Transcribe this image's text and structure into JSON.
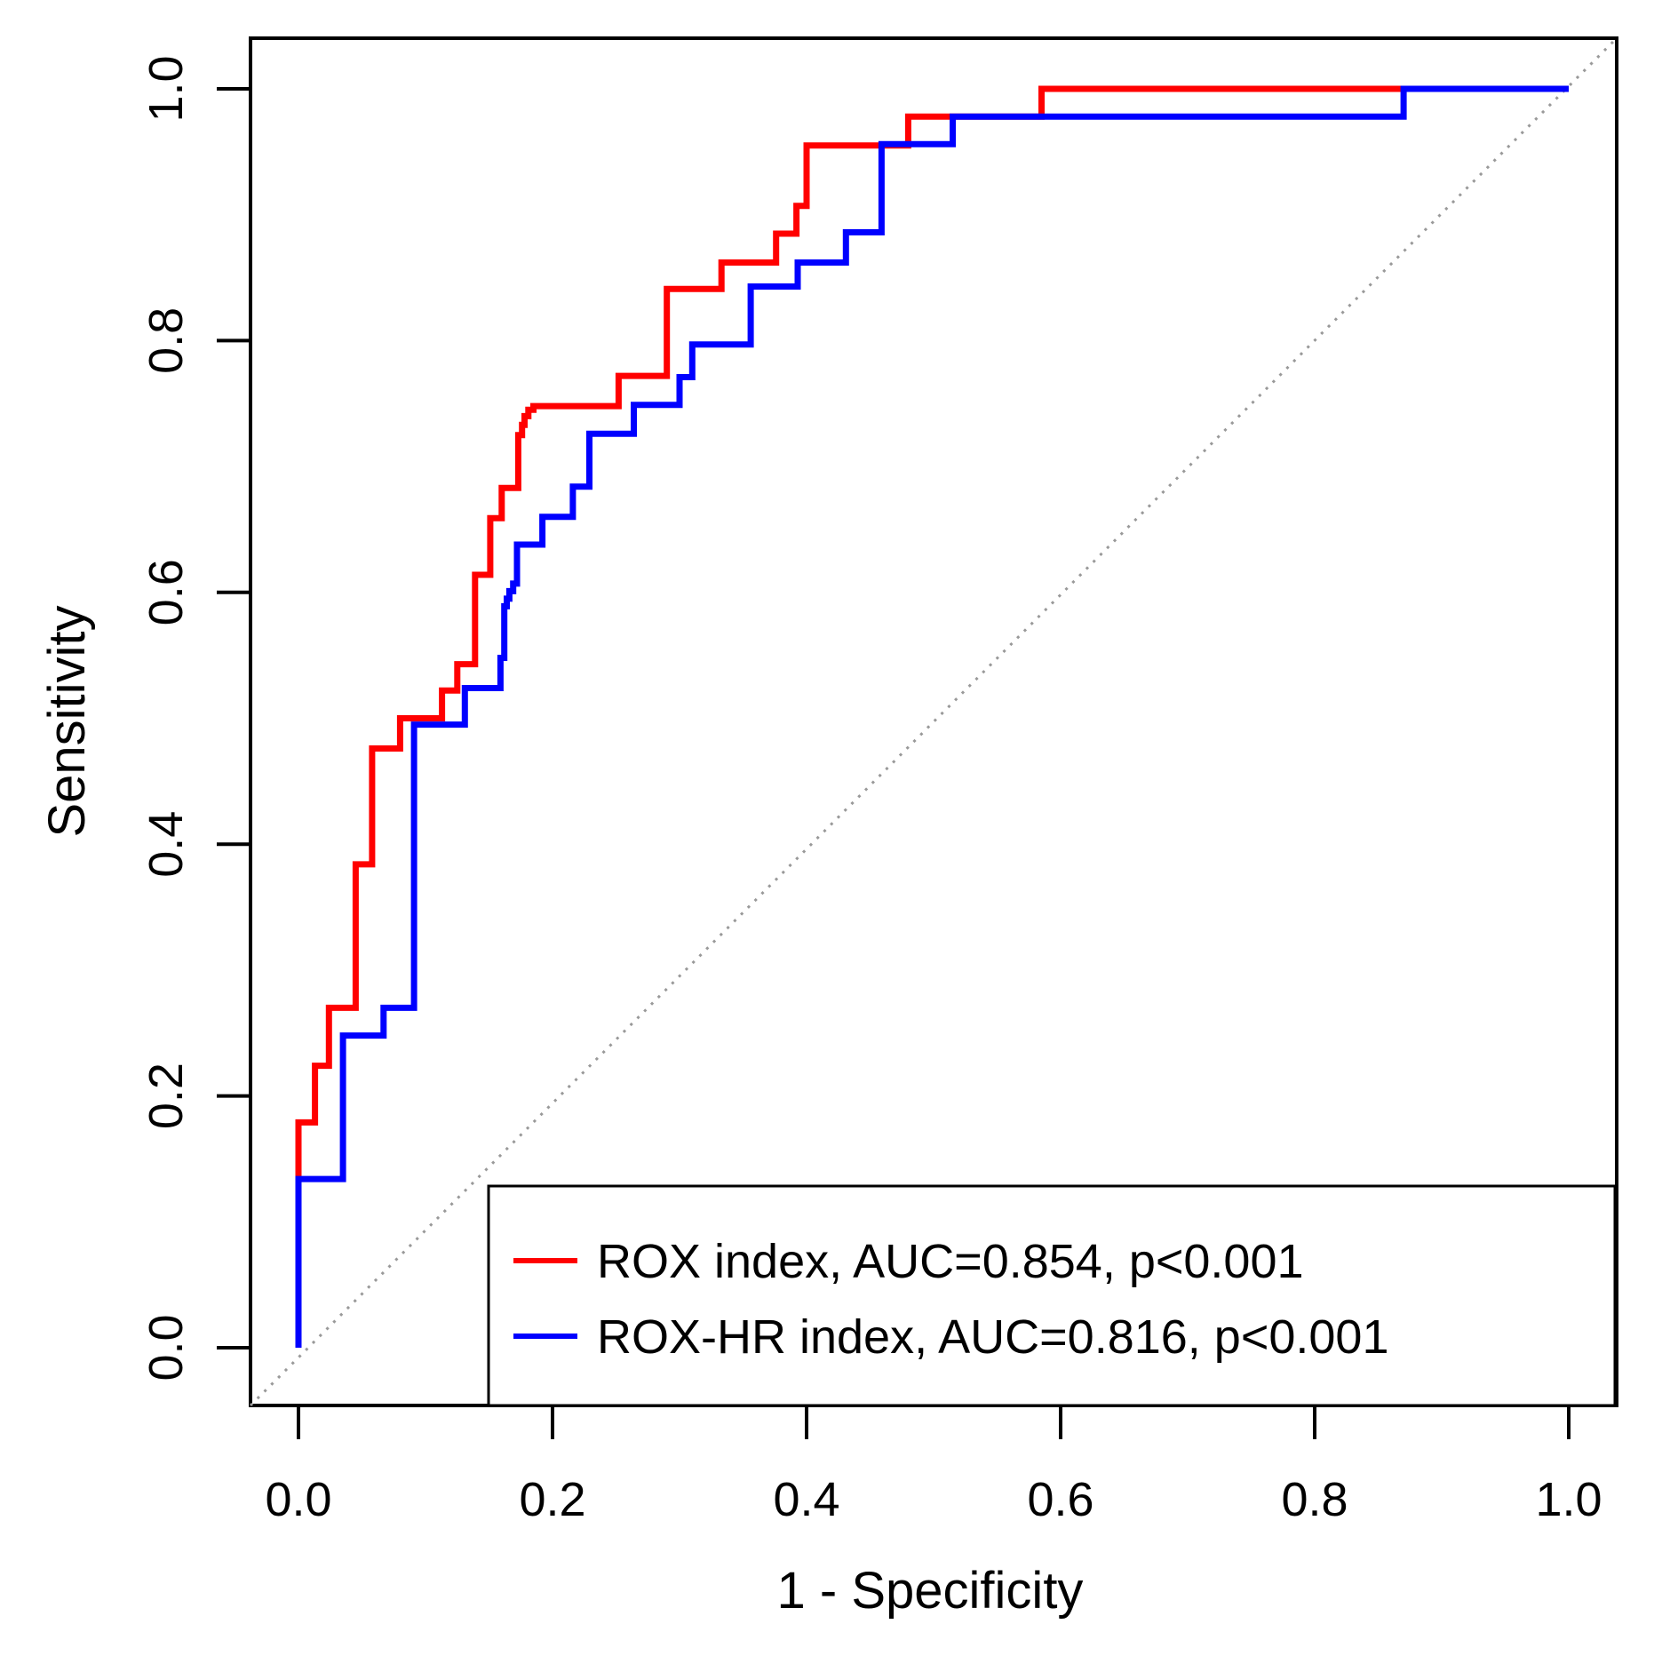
{
  "chart_data": {
    "type": "line",
    "subtype": "roc-step-curves",
    "title": "",
    "xlabel": "1 - Specificity",
    "ylabel": "Sensitivity",
    "xlim": [
      0,
      1
    ],
    "ylim": [
      0,
      1
    ],
    "grid": false,
    "diagonal_reference": true,
    "diagonal_color": "#999999",
    "axis_color": "#000000",
    "background": "#ffffff",
    "x_ticks": [
      {
        "value": 0.0,
        "label": "0.0"
      },
      {
        "value": 0.2,
        "label": "0.2"
      },
      {
        "value": 0.4,
        "label": "0.4"
      },
      {
        "value": 0.6,
        "label": "0.6"
      },
      {
        "value": 0.8,
        "label": "0.8"
      },
      {
        "value": 1.0,
        "label": "1.0"
      }
    ],
    "y_ticks": [
      {
        "value": 0.0,
        "label": "0.0"
      },
      {
        "value": 0.2,
        "label": "0.2"
      },
      {
        "value": 0.4,
        "label": "0.4"
      },
      {
        "value": 0.6,
        "label": "0.6"
      },
      {
        "value": 0.8,
        "label": "0.8"
      },
      {
        "value": 1.0,
        "label": "1.0"
      }
    ],
    "legend_position": "bottom-right",
    "series": [
      {
        "name": "ROX index, AUC=0.854, p<0.001",
        "color": "#ff0000",
        "auc": 0.854,
        "p_value": "p<0.001",
        "points": [
          [
            0.0,
            0.0
          ],
          [
            0.0,
            0.179
          ],
          [
            0.013,
            0.179
          ],
          [
            0.013,
            0.224
          ],
          [
            0.024,
            0.224
          ],
          [
            0.024,
            0.27
          ],
          [
            0.045,
            0.27
          ],
          [
            0.045,
            0.384
          ],
          [
            0.058,
            0.384
          ],
          [
            0.058,
            0.476
          ],
          [
            0.08,
            0.476
          ],
          [
            0.08,
            0.5
          ],
          [
            0.113,
            0.5
          ],
          [
            0.113,
            0.522
          ],
          [
            0.125,
            0.522
          ],
          [
            0.125,
            0.543
          ],
          [
            0.139,
            0.543
          ],
          [
            0.139,
            0.614
          ],
          [
            0.151,
            0.614
          ],
          [
            0.151,
            0.659
          ],
          [
            0.16,
            0.659
          ],
          [
            0.16,
            0.683
          ],
          [
            0.173,
            0.683
          ],
          [
            0.173,
            0.725
          ],
          [
            0.176,
            0.725
          ],
          [
            0.176,
            0.733
          ],
          [
            0.178,
            0.733
          ],
          [
            0.178,
            0.74
          ],
          [
            0.181,
            0.74
          ],
          [
            0.181,
            0.745
          ],
          [
            0.185,
            0.745
          ],
          [
            0.185,
            0.748
          ],
          [
            0.252,
            0.748
          ],
          [
            0.252,
            0.772
          ],
          [
            0.29,
            0.772
          ],
          [
            0.29,
            0.841
          ],
          [
            0.333,
            0.841
          ],
          [
            0.333,
            0.862
          ],
          [
            0.376,
            0.862
          ],
          [
            0.376,
            0.885
          ],
          [
            0.392,
            0.885
          ],
          [
            0.392,
            0.907
          ],
          [
            0.4,
            0.907
          ],
          [
            0.4,
            0.955
          ],
          [
            0.48,
            0.955
          ],
          [
            0.48,
            0.978
          ],
          [
            0.585,
            0.978
          ],
          [
            0.585,
            1.0
          ],
          [
            1.0,
            1.0
          ]
        ]
      },
      {
        "name": "ROX-HR index, AUC=0.816, p<0.001",
        "color": "#0000ff",
        "auc": 0.816,
        "p_value": "p<0.001",
        "points": [
          [
            0.0,
            0.0
          ],
          [
            0.0,
            0.134
          ],
          [
            0.035,
            0.134
          ],
          [
            0.035,
            0.248
          ],
          [
            0.067,
            0.248
          ],
          [
            0.067,
            0.27
          ],
          [
            0.091,
            0.27
          ],
          [
            0.091,
            0.495
          ],
          [
            0.131,
            0.495
          ],
          [
            0.131,
            0.524
          ],
          [
            0.159,
            0.524
          ],
          [
            0.159,
            0.548
          ],
          [
            0.162,
            0.548
          ],
          [
            0.162,
            0.589
          ],
          [
            0.164,
            0.589
          ],
          [
            0.164,
            0.595
          ],
          [
            0.166,
            0.595
          ],
          [
            0.166,
            0.601
          ],
          [
            0.169,
            0.601
          ],
          [
            0.169,
            0.607
          ],
          [
            0.172,
            0.607
          ],
          [
            0.172,
            0.638
          ],
          [
            0.192,
            0.638
          ],
          [
            0.192,
            0.66
          ],
          [
            0.216,
            0.66
          ],
          [
            0.216,
            0.684
          ],
          [
            0.229,
            0.684
          ],
          [
            0.229,
            0.726
          ],
          [
            0.264,
            0.726
          ],
          [
            0.264,
            0.749
          ],
          [
            0.3,
            0.749
          ],
          [
            0.3,
            0.771
          ],
          [
            0.31,
            0.771
          ],
          [
            0.31,
            0.797
          ],
          [
            0.356,
            0.797
          ],
          [
            0.356,
            0.843
          ],
          [
            0.393,
            0.843
          ],
          [
            0.393,
            0.862
          ],
          [
            0.431,
            0.862
          ],
          [
            0.431,
            0.886
          ],
          [
            0.459,
            0.886
          ],
          [
            0.459,
            0.956
          ],
          [
            0.515,
            0.956
          ],
          [
            0.515,
            0.978
          ],
          [
            0.87,
            0.978
          ],
          [
            0.87,
            1.0
          ],
          [
            1.0,
            1.0
          ]
        ]
      }
    ]
  }
}
